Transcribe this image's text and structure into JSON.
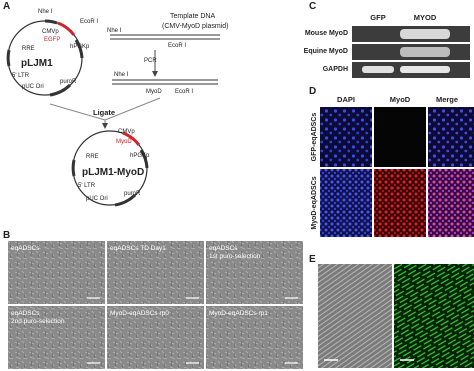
{
  "panel_a": {
    "label": "A",
    "plasmid": {
      "name": "pLJM1",
      "features": [
        "Nhe I",
        "EcoR I",
        "CMVp",
        "EGFP",
        "hPGKp",
        "RRE",
        "5' LTR",
        "puroR",
        "pUC Ori"
      ]
    },
    "template": {
      "title": "Template DNA",
      "subtitle": "(CMV-MyoD plasmid)",
      "sites": [
        "Nhe I",
        "EcoR I"
      ]
    },
    "pcr": "PCR",
    "product": {
      "sites": [
        "Nhe I",
        "EcoR I"
      ],
      "insert": "MyoD"
    },
    "ligate": "Ligate",
    "result": {
      "name": "pLJM1-MyoD",
      "features": [
        "CMVp",
        "MyoD",
        "hPGKp",
        "5' LTR",
        "RRE",
        "pUC Ori",
        "puroR"
      ]
    }
  },
  "panel_b": {
    "label": "B",
    "images": [
      {
        "lines": [
          "eqADSCs"
        ]
      },
      {
        "lines": [
          "eqADSCs TD Day1"
        ]
      },
      {
        "lines": [
          "eqADSCs",
          "1st puro-selection"
        ]
      },
      {
        "lines": [
          "eqADSCs",
          "2nd puro-selection"
        ]
      },
      {
        "lines": [
          "MyoD-eqADSCs rp0"
        ]
      },
      {
        "lines": [
          "MyoD-eqADSCs rp1"
        ]
      }
    ]
  },
  "panel_c": {
    "label": "C",
    "columns": [
      "GFP",
      "MYOD"
    ],
    "rows": [
      "Mouse MyoD",
      "Equine MyoD",
      "GAPDH"
    ]
  },
  "panel_d": {
    "label": "D",
    "columns": [
      "DAPI",
      "MyoD",
      "Merge"
    ],
    "rows": [
      "GFP-eqADSCs",
      "MyoD-eqADSCs"
    ]
  },
  "panel_e": {
    "label": "E"
  }
}
